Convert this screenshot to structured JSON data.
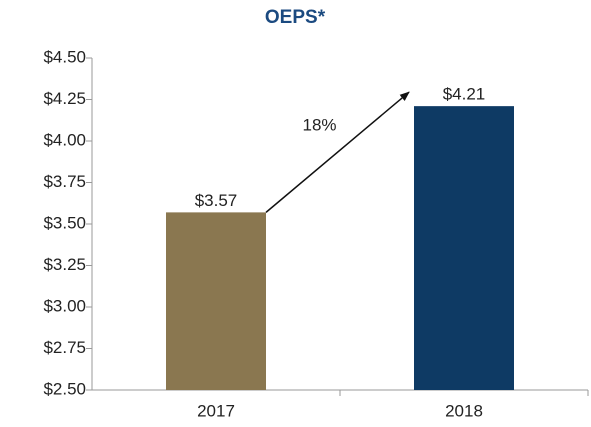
{
  "chart_data": {
    "type": "bar",
    "title": "OEPS*",
    "categories": [
      "2017",
      "2018"
    ],
    "values": [
      3.57,
      4.21
    ],
    "value_labels": [
      "$3.57",
      "$4.21"
    ],
    "colors": [
      "#8a7750",
      "#0e3a64"
    ],
    "ylim": [
      2.5,
      4.5
    ],
    "yticks": [
      {
        "value": 2.5,
        "label": "$2.50"
      },
      {
        "value": 2.75,
        "label": "$2.75"
      },
      {
        "value": 3.0,
        "label": "$3.00"
      },
      {
        "value": 3.25,
        "label": "$3.25"
      },
      {
        "value": 3.5,
        "label": "$3.50"
      },
      {
        "value": 3.75,
        "label": "$3.75"
      },
      {
        "value": 4.0,
        "label": "$4.00"
      },
      {
        "value": 4.25,
        "label": "$4.25"
      },
      {
        "value": 4.5,
        "label": "$4.50"
      }
    ],
    "grid": false,
    "annotation": "18%"
  }
}
